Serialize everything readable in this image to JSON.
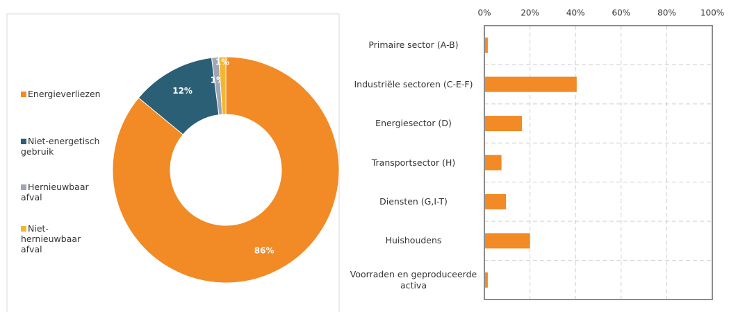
{
  "chart_data": [
    {
      "type": "donut",
      "categories": [
        "Energieverliezen",
        "Niet-energetisch gebruik",
        "Hernieuwbaar afval",
        "Niet-hernieuwbaar afval"
      ],
      "values": [
        86,
        12,
        1,
        1
      ],
      "value_labels": [
        "86%",
        "12%",
        "1%",
        "1%"
      ],
      "colors": [
        "#f28a25",
        "#2b5f75",
        "#9ea7b3",
        "#f2b632"
      ],
      "legend": "left"
    },
    {
      "type": "hbar",
      "categories": [
        "Primaire sector (A-B)",
        "Industriële sectoren (C-E-F)",
        "Energiesector (D)",
        "Transportsector (H)",
        "Diensten (G,I-T)",
        "Huishoudens",
        "Voorraden en geproduceerde activa"
      ],
      "values": [
        1.5,
        40.5,
        16.5,
        7.5,
        9.5,
        20,
        1.5
      ],
      "color": "#f28a25",
      "xlim": [
        0,
        100
      ],
      "xticks": [
        {
          "value": 0,
          "label": "0%"
        },
        {
          "value": 20,
          "label": "20%"
        },
        {
          "value": 40,
          "label": "40%"
        },
        {
          "value": 60,
          "label": "60%"
        },
        {
          "value": 80,
          "label": "80%"
        },
        {
          "value": 100,
          "label": "100%"
        }
      ],
      "grid": true
    }
  ]
}
